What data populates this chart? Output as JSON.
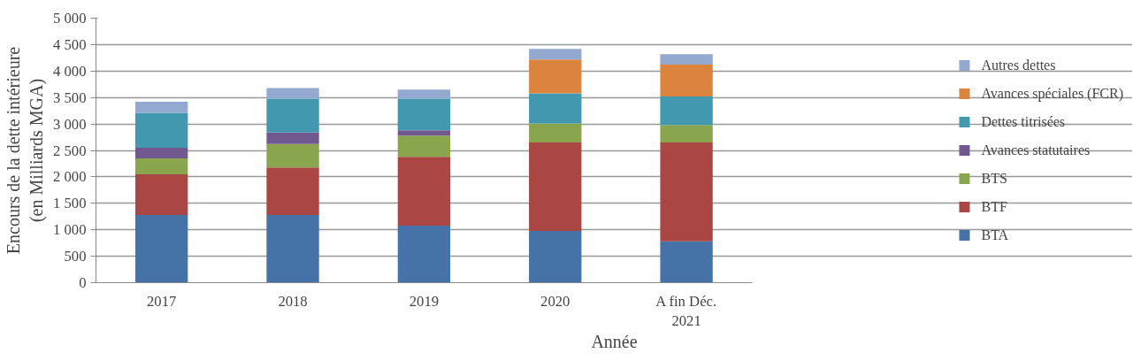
{
  "chart_data": {
    "type": "bar",
    "stacked": true,
    "xlabel": "Année",
    "ylabel": "Encours de la dette intérieure\n(en Milliards MGA)",
    "categories": [
      "2017",
      "2018",
      "2019",
      "2020",
      "A fin Déc.\n2021"
    ],
    "series": [
      {
        "name": "BTA",
        "color": "#4572a7",
        "values": [
          1280,
          1280,
          1080,
          980,
          780
        ]
      },
      {
        "name": "BTF",
        "color": "#aa4643",
        "values": [
          770,
          900,
          1300,
          1670,
          1870
        ]
      },
      {
        "name": "BTS",
        "color": "#89a54e",
        "values": [
          300,
          440,
          400,
          360,
          330
        ]
      },
      {
        "name": "Avances statutaires",
        "color": "#71588f",
        "values": [
          200,
          220,
          100,
          0,
          0
        ]
      },
      {
        "name": "Dettes titrisées",
        "color": "#4198af",
        "values": [
          660,
          640,
          600,
          570,
          540
        ]
      },
      {
        "name": "Avances spéciales (FCR)",
        "color": "#db843d",
        "values": [
          0,
          0,
          0,
          640,
          600
        ]
      },
      {
        "name": "Autres dettes",
        "color": "#93a9cf",
        "values": [
          210,
          200,
          170,
          200,
          200
        ]
      }
    ],
    "ylim": [
      0,
      5000
    ],
    "yticks": [
      0,
      500,
      {
        "value": 1000,
        "label": "1 000"
      },
      {
        "value": 1500,
        "label": "1 500"
      },
      {
        "value": 2000,
        "label": "2 000"
      },
      {
        "value": 2500,
        "label": "2 500"
      },
      {
        "value": 3000,
        "label": "3 000"
      },
      {
        "value": 3500,
        "label": "3 500"
      },
      {
        "value": 4000,
        "label": "4 000"
      },
      {
        "value": 4500,
        "label": "4 500"
      },
      {
        "value": 5000,
        "label": "5 000"
      }
    ],
    "grid": "y",
    "legend": "right"
  }
}
